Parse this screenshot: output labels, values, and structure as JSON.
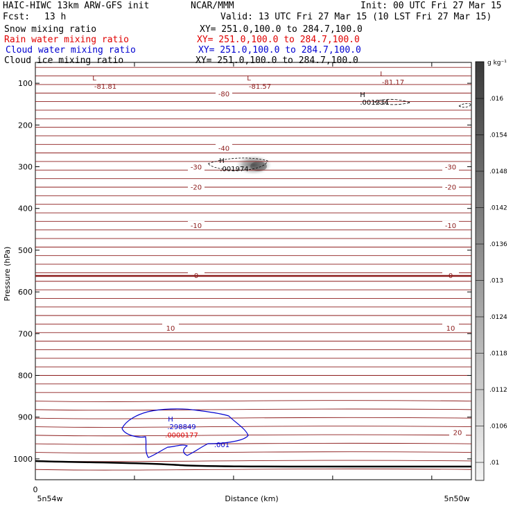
{
  "header": {
    "title": "HAIC-HIWC 13km ARW-GFS init",
    "org": "NCAR/MMM",
    "init": "Init: 00 UTC Fri 27 Mar 15",
    "fcst_label": "Fcst:",
    "fcst_value": "13 h",
    "valid": "Valid: 13 UTC Fri 27 Mar 15 (10 LST Fri 27 Mar 15)"
  },
  "fields": [
    {
      "name": "Snow mixing ratio",
      "xy": "XY= 251.0,100.0 to 284.7,100.0",
      "color": "#000000"
    },
    {
      "name": "Rain water mixing ratio",
      "xy": "XY= 251.0,100.0 to 284.7,100.0",
      "color": "#e00000"
    },
    {
      "name": "Cloud water mixing ratio",
      "xy": "XY= 251.0,100.0 to 284.7,100.0",
      "color": "#0000d0"
    },
    {
      "name": "Cloud ice mixing ratio",
      "xy": "XY= 251.0,100.0 to 284.7,100.0",
      "color": "#000000"
    }
  ],
  "chart_data": {
    "type": "contour-cross-section",
    "ylabel": "Pressure (hPa)",
    "xlabel": "Distance (km)",
    "y_ticks": [
      100,
      200,
      300,
      400,
      500,
      600,
      700,
      800,
      900,
      1000
    ],
    "y_range": [
      50,
      1050
    ],
    "x_start_label": "5n54w",
    "x_end_label": "5n50w",
    "x_zero_label": "0",
    "colorbar": {
      "unit": "g kg⁻¹",
      "ticks": [
        ".016",
        ".0154",
        ".0148",
        ".0142",
        ".0136",
        ".013",
        ".0124",
        ".0118",
        ".0112",
        ".0106",
        ".01"
      ]
    },
    "temperature_contours": [
      {
        "label": "-80",
        "pressure": 125
      },
      {
        "label": "-40",
        "pressure": 255
      },
      {
        "label": "-30",
        "pressure": 300
      },
      {
        "label": "-20",
        "pressure": 348
      },
      {
        "label": "-10",
        "pressure": 440
      },
      {
        "label": "0",
        "pressure": 560
      },
      {
        "label": "10",
        "pressure": 686
      },
      {
        "label": "20",
        "pressure": 936
      }
    ],
    "annotations": [
      {
        "text": "L",
        "sub": "-81.81",
        "color": "#8b1a1a"
      },
      {
        "text": "L",
        "sub": "-81.57",
        "color": "#8b1a1a"
      },
      {
        "text": "L",
        "sub": "-81.17",
        "color": "#8b1a1a"
      },
      {
        "text": "H",
        "sub": ".001234",
        "color": "#000000"
      },
      {
        "text": "H",
        "sub": ".001974",
        "color": "#000000"
      },
      {
        "text": "H",
        "sub": ".298849",
        "color": "#0000d0"
      },
      {
        "text": "H",
        "sub": ".0000177",
        "color": "#e00000"
      },
      {
        "text": ".001",
        "sub": "",
        "color": "#0000d0"
      }
    ]
  }
}
